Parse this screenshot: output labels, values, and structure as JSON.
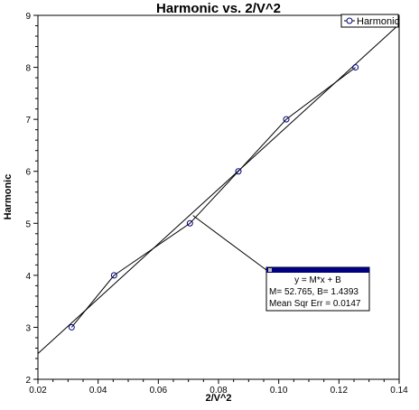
{
  "chart_data": {
    "type": "scatter",
    "title": "Harmonic vs. 2/V^2",
    "xlabel": "2/V^2",
    "ylabel": "Harmonic",
    "xlim": [
      0.02,
      0.14
    ],
    "ylim": [
      2,
      9
    ],
    "xticks": [
      0.02,
      0.04,
      0.06,
      0.08,
      0.1,
      0.12,
      0.14
    ],
    "xtick_labels": [
      "0.02",
      "0.04",
      "0.06",
      "0.08",
      "0.10",
      "0.12",
      "0.14"
    ],
    "yticks": [
      2,
      3,
      4,
      5,
      6,
      7,
      8,
      9
    ],
    "ytick_labels": [
      "2",
      "3",
      "4",
      "5",
      "6",
      "7",
      "8",
      "9"
    ],
    "grid": false,
    "legend_position": "top-right",
    "series": [
      {
        "name": "Harmonic",
        "color": "#000080",
        "marker": "circle",
        "connected": true,
        "x": [
          0.0312,
          0.0453,
          0.0705,
          0.0866,
          0.1025,
          0.1255
        ],
        "y": [
          3,
          4,
          5,
          6,
          7,
          8
        ]
      }
    ],
    "fit": {
      "slope": 52.765,
      "intercept": 1.4393,
      "x_range": [
        0.02,
        0.14
      ],
      "box_lines": [
        "y = M*x + B",
        "M= 52.765,  B= 1.4393",
        "Mean Sqr Err = 0.0147"
      ],
      "pointer_target": [
        0.0715,
        5.15
      ]
    }
  }
}
